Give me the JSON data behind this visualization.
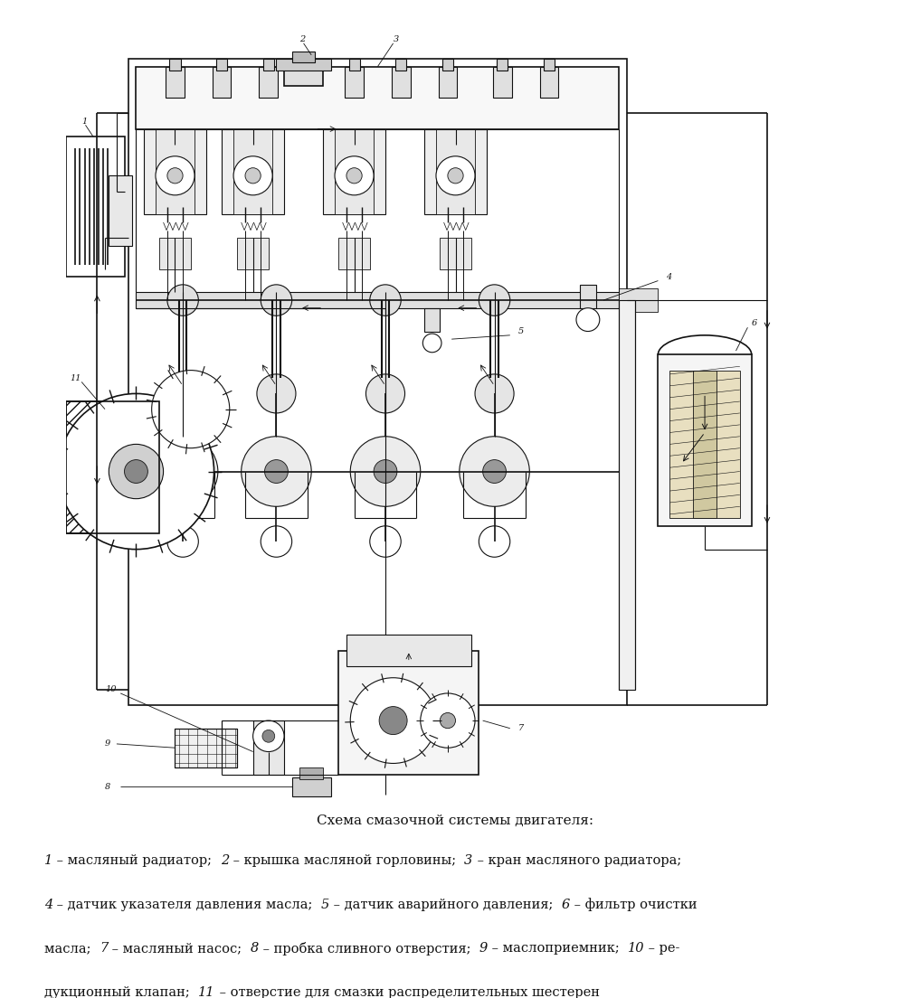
{
  "title": "Схема смазочной системы двигателя:",
  "caption_line1": "1 – масляный радиатор;  2 – крышка масляной горловины;  3 – кран масляного радиатора;",
  "caption_line2": "4 – датчик указателя давления масла;  5 – датчик аварийного давления;  6 – фильтр очистки",
  "caption_line3": "масла;  7 – масляный насос;  8 – пробка сливного отверстия;  9 – маслоприемник;  10 – ре-",
  "caption_line4": "дукционный клапан;  11 – отверстие для смазки распределительных шестерен",
  "bg_color": "#ffffff",
  "text_color": "#111111",
  "fig_width": 10.07,
  "fig_height": 11.04,
  "dpi": 100
}
